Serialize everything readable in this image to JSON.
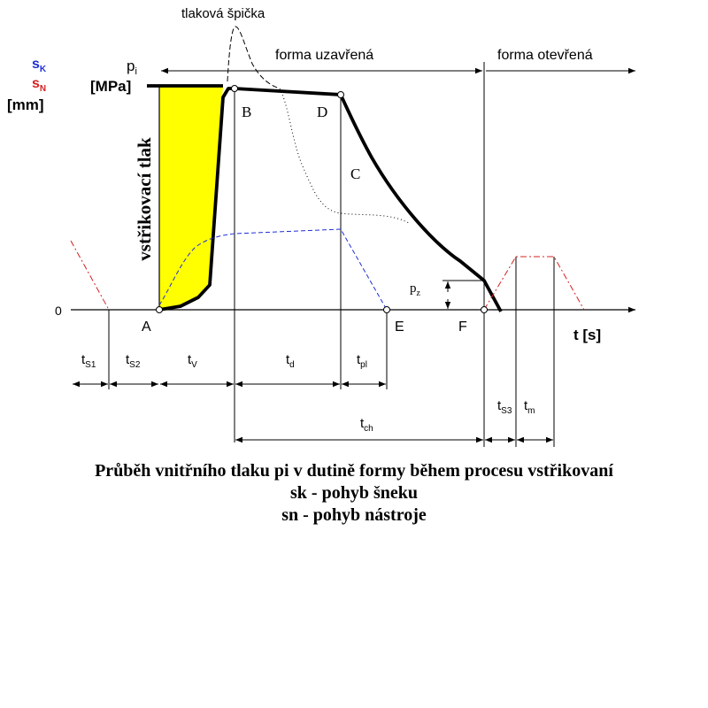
{
  "labels": {
    "pressure_peak": "tlaková špička",
    "mold_closed": "forma uzavřená",
    "mold_open": "forma otevřená",
    "injection_pressure": "vstřikovací tlak",
    "p_main": "p",
    "p_sub": "i",
    "mpa_unit": "[MPa]",
    "sk_main": "s",
    "sk_sub": "K",
    "sn_main": "s",
    "sn_sub": "N",
    "mm_unit": "[mm]",
    "zero": "0",
    "time_axis": "t [s]",
    "pz_main": "p",
    "pz_sub": "z"
  },
  "points": {
    "A": "A",
    "B": "B",
    "C": "C",
    "D": "D",
    "E": "E",
    "F": "F"
  },
  "intervals": {
    "ts1": {
      "main": "t",
      "sub": "S1"
    },
    "ts2": {
      "main": "t",
      "sub": "S2"
    },
    "tv": {
      "main": "t",
      "sub": "V"
    },
    "td": {
      "main": "t",
      "sub": "d"
    },
    "tpl": {
      "main": "t",
      "sub": "pl"
    },
    "tch": {
      "main": "t",
      "sub": "ch"
    },
    "ts3": {
      "main": "t",
      "sub": "S3"
    },
    "tm": {
      "main": "t",
      "sub": "m"
    }
  },
  "colors": {
    "sk": "#1f2fd6",
    "sn": "#d62020",
    "fill": "#ffff00",
    "line": "#000000"
  },
  "caption": {
    "line1": "Průběh vnitřního tlaku pi v dutině formy během procesu vstřikovaní",
    "line2": "sk - pohyb šneku",
    "line3": "sn - pohyb nástroje"
  }
}
